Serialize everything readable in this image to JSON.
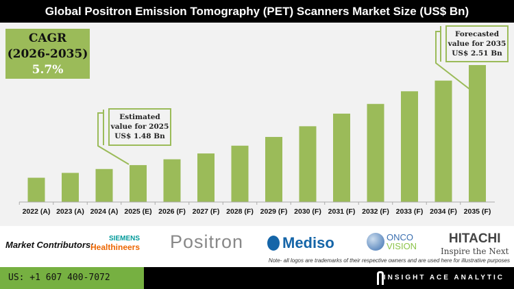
{
  "title": "Global Positron Emission Tomography (PET) Scanners Market Size (US$ Bn)",
  "cagr": {
    "label": "CAGR",
    "period": "(2026-2035)",
    "value": "5.7%"
  },
  "callouts": {
    "estimated": {
      "line1": "Estimated",
      "line2": "value for 2025",
      "line3": "US$ 1.48 Bn"
    },
    "forecasted": {
      "line1": "Forecasted",
      "line2": "value for 2035",
      "line3": "US$ 2.51 Bn"
    }
  },
  "chart_data": {
    "type": "bar",
    "title": "Global Positron Emission Tomography (PET) Scanners Market Size (US$ Bn)",
    "categories": [
      "2022 (A)",
      "2023 (A)",
      "2024 (A)",
      "2025 (E)",
      "2026 (F)",
      "2027 (F)",
      "2028 (F)",
      "2029 (F)",
      "2030 (F)",
      "2031 (F)",
      "2032 (F)",
      "2033 (F)",
      "2034 (F)",
      "2035 (F)"
    ],
    "values": [
      1.35,
      1.4,
      1.44,
      1.48,
      1.54,
      1.6,
      1.68,
      1.77,
      1.88,
      2.01,
      2.11,
      2.24,
      2.35,
      2.51
    ],
    "ylim": [
      1.1,
      2.51
    ],
    "grid": false,
    "color": "#9bbb59"
  },
  "contributors": {
    "label": "Market Contributors:",
    "logos": [
      {
        "name": "Siemens Healthineers",
        "line1": "SIEMENS",
        "line2": "Healthineers"
      },
      {
        "name": "Positron",
        "text": "Positron"
      },
      {
        "name": "Mediso",
        "text": "Mediso"
      },
      {
        "name": "OncoVision",
        "line1": "ONCO",
        "line2": "VISION"
      },
      {
        "name": "Hitachi",
        "line1": "HITACHI",
        "line2": "Inspire the Next"
      }
    ],
    "note": "Note- all logos are trademarks of their respective owners and are used here for illustrative purposes"
  },
  "footer": {
    "phone": "US: +1 607 400-7072",
    "brand": "INSIGHT ACE ANALYTIC"
  }
}
